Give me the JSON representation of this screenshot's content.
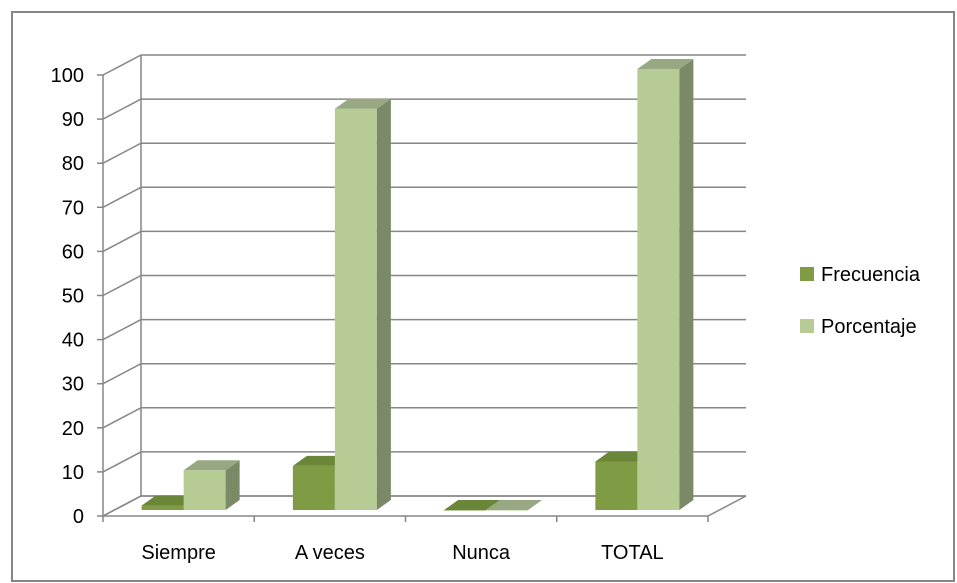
{
  "chart_data": {
    "type": "bar",
    "categories": [
      "Siempre",
      "A veces",
      "Nunca",
      "TOTAL"
    ],
    "series": [
      {
        "name": "Frecuencia",
        "values": [
          1,
          10,
          0,
          11
        ],
        "color": "#7f9c44",
        "side_color": "#5f7733",
        "top_color": "#6a8639"
      },
      {
        "name": "Porcentaje",
        "values": [
          9,
          91,
          0,
          100
        ],
        "color": "#b7cc94",
        "side_color": "#7a8a66",
        "top_color": "#98a882"
      }
    ],
    "yticks": [
      "0",
      "10",
      "20",
      "30",
      "40",
      "50",
      "60",
      "70",
      "80",
      "90",
      "100"
    ],
    "ylim": [
      0,
      100
    ],
    "title": "",
    "xlabel": "",
    "ylabel": "",
    "legend_position": "right",
    "grid": true,
    "three_d": true
  }
}
